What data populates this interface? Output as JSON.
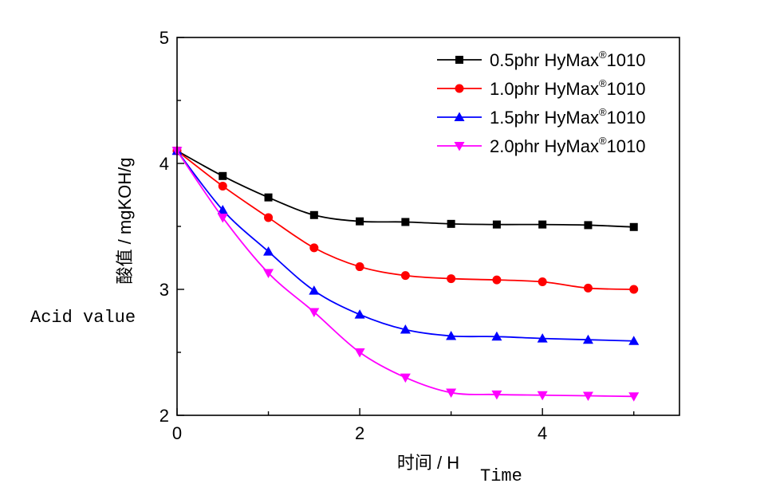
{
  "chart_data": {
    "type": "line",
    "xlabel": "时间 / H",
    "ylabel": "酸值 / mgKOH/g",
    "xlim": [
      0,
      5.5
    ],
    "ylim": [
      2,
      5
    ],
    "xticks": [
      "0",
      "2",
      "4"
    ],
    "xtick_values": [
      0,
      2,
      4
    ],
    "yticks": [
      "2",
      "3",
      "4",
      "5"
    ],
    "ytick_values": [
      2,
      3,
      4,
      5
    ],
    "legend_position": "top-right",
    "annotations": {
      "ylabel_en": "Acid value",
      "xlabel_en": "Time"
    },
    "x": [
      0,
      0.5,
      1.0,
      1.5,
      2.0,
      2.5,
      3.0,
      3.5,
      4.0,
      4.5,
      5.0
    ],
    "series": [
      {
        "name": "0.5phr HyMax",
        "name_sup": "®",
        "name_suffix": "1010",
        "color": "#000000",
        "marker": "square",
        "values": [
          4.1,
          3.9,
          3.73,
          3.59,
          3.54,
          3.535,
          3.52,
          3.515,
          3.515,
          3.51,
          3.495
        ]
      },
      {
        "name": "1.0phr HyMax",
        "name_sup": "®",
        "name_suffix": "1010",
        "color": "#ff0000",
        "marker": "circle",
        "values": [
          4.1,
          3.82,
          3.57,
          3.33,
          3.18,
          3.11,
          3.085,
          3.075,
          3.06,
          3.01,
          3.0
        ]
      },
      {
        "name": "1.5phr HyMax",
        "name_sup": "®",
        "name_suffix": "1010",
        "color": "#0000ff",
        "marker": "triangle-up",
        "values": [
          4.1,
          3.63,
          3.3,
          2.99,
          2.8,
          2.68,
          2.63,
          2.625,
          2.61,
          2.6,
          2.59
        ]
      },
      {
        "name": "2.0phr HyMax",
        "name_sup": "®",
        "name_suffix": "1010",
        "color": "#ff00ff",
        "marker": "triangle-down",
        "values": [
          4.1,
          3.57,
          3.13,
          2.82,
          2.5,
          2.3,
          2.18,
          2.165,
          2.16,
          2.155,
          2.15
        ]
      }
    ]
  }
}
